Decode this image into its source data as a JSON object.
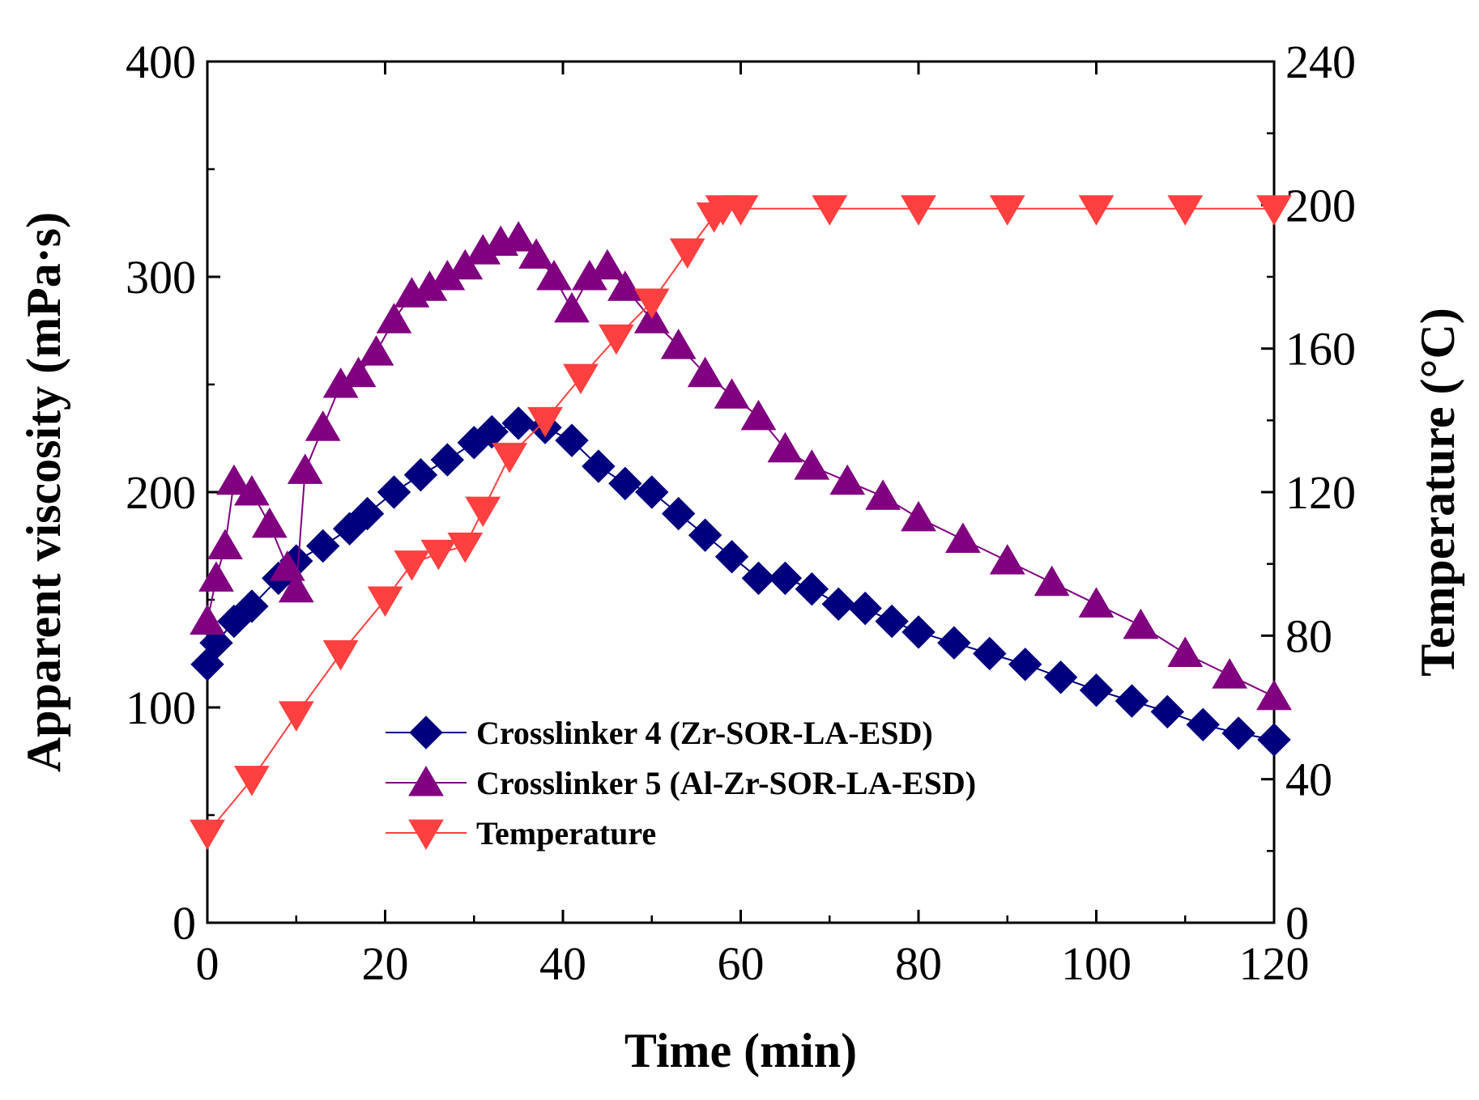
{
  "chart_data": {
    "type": "scatter",
    "xlabel": "Time (min)",
    "ylabel_left": "Apparent viscosity (mPa·s)",
    "ylabel_right": "Temperature (°C)",
    "xlim": [
      0,
      120
    ],
    "ylim_left": [
      0,
      400
    ],
    "ylim_right": [
      0,
      240
    ],
    "x_ticks": [
      "0",
      "20",
      "40",
      "60",
      "80",
      "100",
      "120"
    ],
    "y_left_ticks": [
      "0",
      "100",
      "200",
      "300",
      "400"
    ],
    "y_right_ticks": [
      "0",
      "40",
      "80",
      "120",
      "160",
      "200",
      "240"
    ],
    "legend_position": "bottom-center",
    "grid": false,
    "colors": {
      "crosslinker4": "#00007f",
      "crosslinker5": "#800080",
      "temperature": "#ff4040",
      "axis": "#000000"
    },
    "series": [
      {
        "name": "Crosslinker 4 (Zr-SOR-LA-ESD)",
        "axis": "left",
        "marker": "diamond",
        "x": [
          0,
          1,
          3,
          5,
          8,
          10,
          13,
          16,
          18,
          21,
          24,
          27,
          30,
          32,
          35,
          38,
          41,
          44,
          47,
          50,
          53,
          56,
          59,
          62,
          65,
          68,
          71,
          74,
          77,
          80,
          84,
          88,
          92,
          96,
          100,
          104,
          108,
          112,
          116,
          120
        ],
        "values": [
          120,
          130,
          140,
          147,
          160,
          168,
          175,
          183,
          190,
          200,
          208,
          215,
          223,
          228,
          232,
          230,
          224,
          212,
          204,
          200,
          190,
          180,
          170,
          160,
          160,
          155,
          148,
          146,
          140,
          135,
          130,
          125,
          120,
          114,
          108,
          103,
          98,
          92,
          88,
          85
        ]
      },
      {
        "name": "Crosslinker 5 (Al-Zr-SOR-LA-ESD)",
        "axis": "left",
        "marker": "triangle-up",
        "x": [
          0,
          1,
          2,
          3,
          5,
          7,
          9,
          10,
          11,
          13,
          15,
          17,
          19,
          21,
          23,
          25,
          27,
          29,
          31,
          33,
          35,
          37,
          39,
          41,
          43,
          45,
          47,
          50,
          53,
          56,
          59,
          62,
          65,
          68,
          72,
          76,
          80,
          85,
          90,
          95,
          100,
          105,
          110,
          115,
          120
        ],
        "values": [
          140,
          160,
          175,
          205,
          200,
          185,
          165,
          155,
          210,
          230,
          250,
          255,
          265,
          280,
          292,
          295,
          300,
          305,
          312,
          316,
          318,
          310,
          300,
          285,
          300,
          305,
          295,
          280,
          268,
          255,
          245,
          235,
          220,
          212,
          205,
          198,
          188,
          178,
          168,
          158,
          148,
          138,
          125,
          115,
          105
        ]
      },
      {
        "name": "Temperature",
        "axis": "right",
        "marker": "triangle-down",
        "x": [
          0,
          5,
          10,
          15,
          20,
          23,
          26,
          29,
          31,
          34,
          38,
          42,
          46,
          50,
          54,
          57,
          58,
          60,
          70,
          80,
          90,
          100,
          110,
          120
        ],
        "values": [
          25,
          40,
          58,
          75,
          90,
          100,
          103,
          105,
          115,
          130,
          140,
          152,
          163,
          173,
          187,
          197,
          199,
          199,
          199,
          199,
          199,
          199,
          199,
          199
        ]
      }
    ]
  }
}
